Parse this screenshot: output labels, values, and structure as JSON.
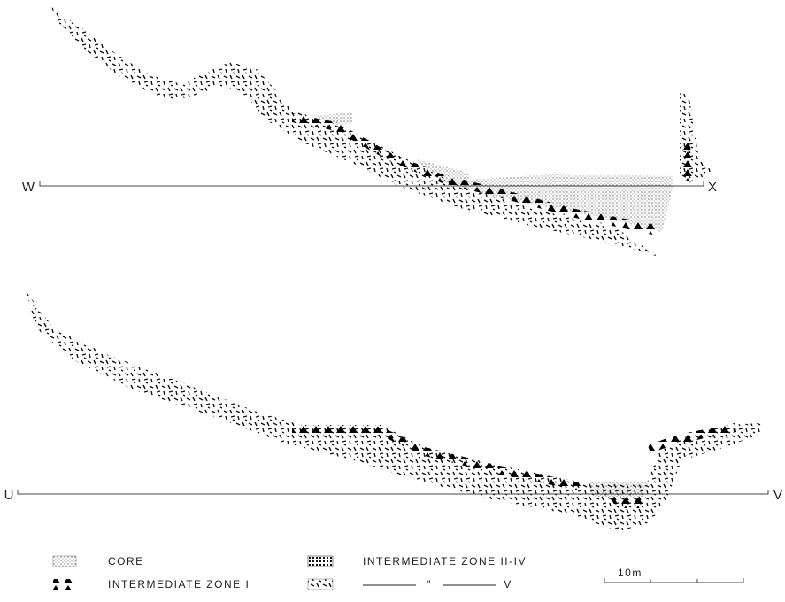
{
  "sections": [
    {
      "left_label": "W",
      "right_label": "X"
    },
    {
      "left_label": "U",
      "right_label": "V"
    }
  ],
  "legend": [
    {
      "label": "CORE"
    },
    {
      "label": "INTERMEDIATE ZONE I"
    },
    {
      "label": "INTERMEDIATE ZONE II-IV"
    },
    {
      "ditto": "\"",
      "label": "V"
    }
  ],
  "scale": {
    "label": "10m"
  }
}
